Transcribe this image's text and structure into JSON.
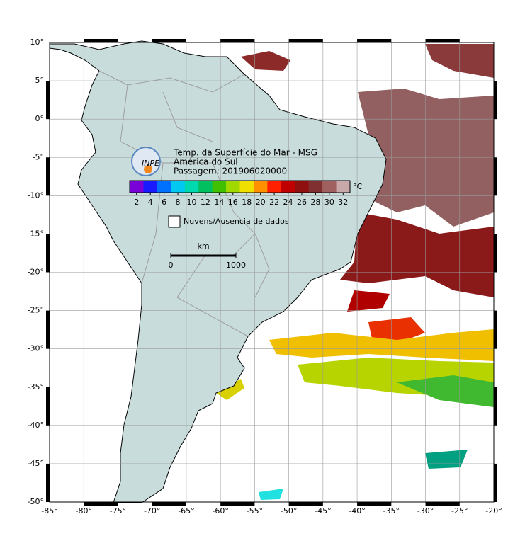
{
  "map": {
    "title_lines": [
      "Temp. da Superfície do Mar - MSG",
      "América do Sul",
      "Passagem: 201906020000"
    ],
    "logo": "INPE",
    "lonlim": [
      -85,
      -20
    ],
    "latlim": [
      -50,
      10
    ],
    "grid": true,
    "lon_ticks": [
      {
        "value": -85,
        "label": "-85°"
      },
      {
        "value": -80,
        "label": "-80°"
      },
      {
        "value": -75,
        "label": "-75°"
      },
      {
        "value": -70,
        "label": "-70°"
      },
      {
        "value": -65,
        "label": "-65°"
      },
      {
        "value": -60,
        "label": "-60°"
      },
      {
        "value": -55,
        "label": "-55°"
      },
      {
        "value": -50,
        "label": "-50°"
      },
      {
        "value": -45,
        "label": "-45°"
      },
      {
        "value": -40,
        "label": "-40°"
      },
      {
        "value": -35,
        "label": "-35°"
      },
      {
        "value": -30,
        "label": "-30°"
      },
      {
        "value": -25,
        "label": "-25°"
      },
      {
        "value": -20,
        "label": "-20°"
      }
    ],
    "lat_ticks": [
      {
        "value": 10,
        "label": "10°"
      },
      {
        "value": 5,
        "label": "5°"
      },
      {
        "value": 0,
        "label": "0°"
      },
      {
        "value": -5,
        "label": "-5°"
      },
      {
        "value": -10,
        "label": "-10°"
      },
      {
        "value": -15,
        "label": "-15°"
      },
      {
        "value": -20,
        "label": "-20°"
      },
      {
        "value": -25,
        "label": "-25°"
      },
      {
        "value": -30,
        "label": "-30°"
      },
      {
        "value": -35,
        "label": "-35°"
      },
      {
        "value": -40,
        "label": "-40°"
      },
      {
        "value": -45,
        "label": "-45°"
      },
      {
        "value": -50,
        "label": "-50°"
      }
    ],
    "colorbar": {
      "unit": "°C",
      "lim": [
        1,
        33
      ],
      "ticks": [
        2,
        4,
        6,
        8,
        10,
        12,
        14,
        16,
        18,
        20,
        22,
        24,
        26,
        28,
        30,
        32
      ],
      "colors": [
        "#7a00d8",
        "#1a1aff",
        "#0070ff",
        "#00c8f0",
        "#00d8b0",
        "#00c060",
        "#40c000",
        "#a0d800",
        "#f0e000",
        "#ff9000",
        "#ff2000",
        "#c00000",
        "#901010",
        "#803030",
        "#a06060",
        "#c8a8a8"
      ]
    },
    "legend": {
      "no_data": "Nuvens/Ausencia de dados"
    },
    "scale_bar": {
      "unit": "km",
      "ticks": [
        0,
        1000
      ]
    }
  }
}
